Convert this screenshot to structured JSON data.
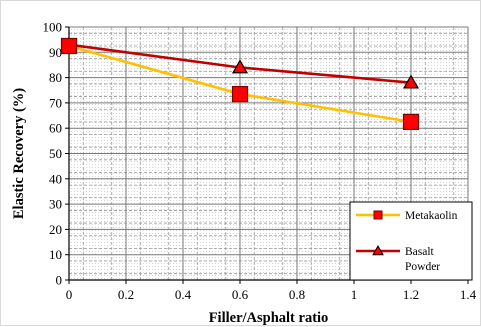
{
  "chart_data": {
    "type": "line",
    "xlabel": "Filler/Asphalt ratio",
    "ylabel": "Elastic Recovery (%)",
    "xlim": [
      0,
      1.4
    ],
    "ylim": [
      0,
      100
    ],
    "x_ticks": [
      "0",
      "0.2",
      "0.4",
      "0.6",
      "0.8",
      "1",
      "1.2",
      "1.4"
    ],
    "y_ticks": [
      "0",
      "10",
      "20",
      "30",
      "40",
      "50",
      "60",
      "70",
      "80",
      "90",
      "100"
    ],
    "grid": true,
    "legend_position": "bottom-right",
    "series": [
      {
        "name": "Metakaolin",
        "marker": "square",
        "line_color": "#FFC000",
        "marker_fill": "#FF0000",
        "marker_edge": "#7F0000",
        "x": [
          0,
          0.6,
          1.2
        ],
        "y": [
          92.5,
          73.5,
          62.5
        ]
      },
      {
        "name_lines": [
          "Basalt",
          "Powder"
        ],
        "marker": "triangle",
        "line_color": "#C00000",
        "marker_fill": "#FF0000",
        "marker_edge": "#000000",
        "x": [
          0,
          0.6,
          1.2
        ],
        "y": [
          93,
          84,
          78
        ]
      }
    ]
  }
}
